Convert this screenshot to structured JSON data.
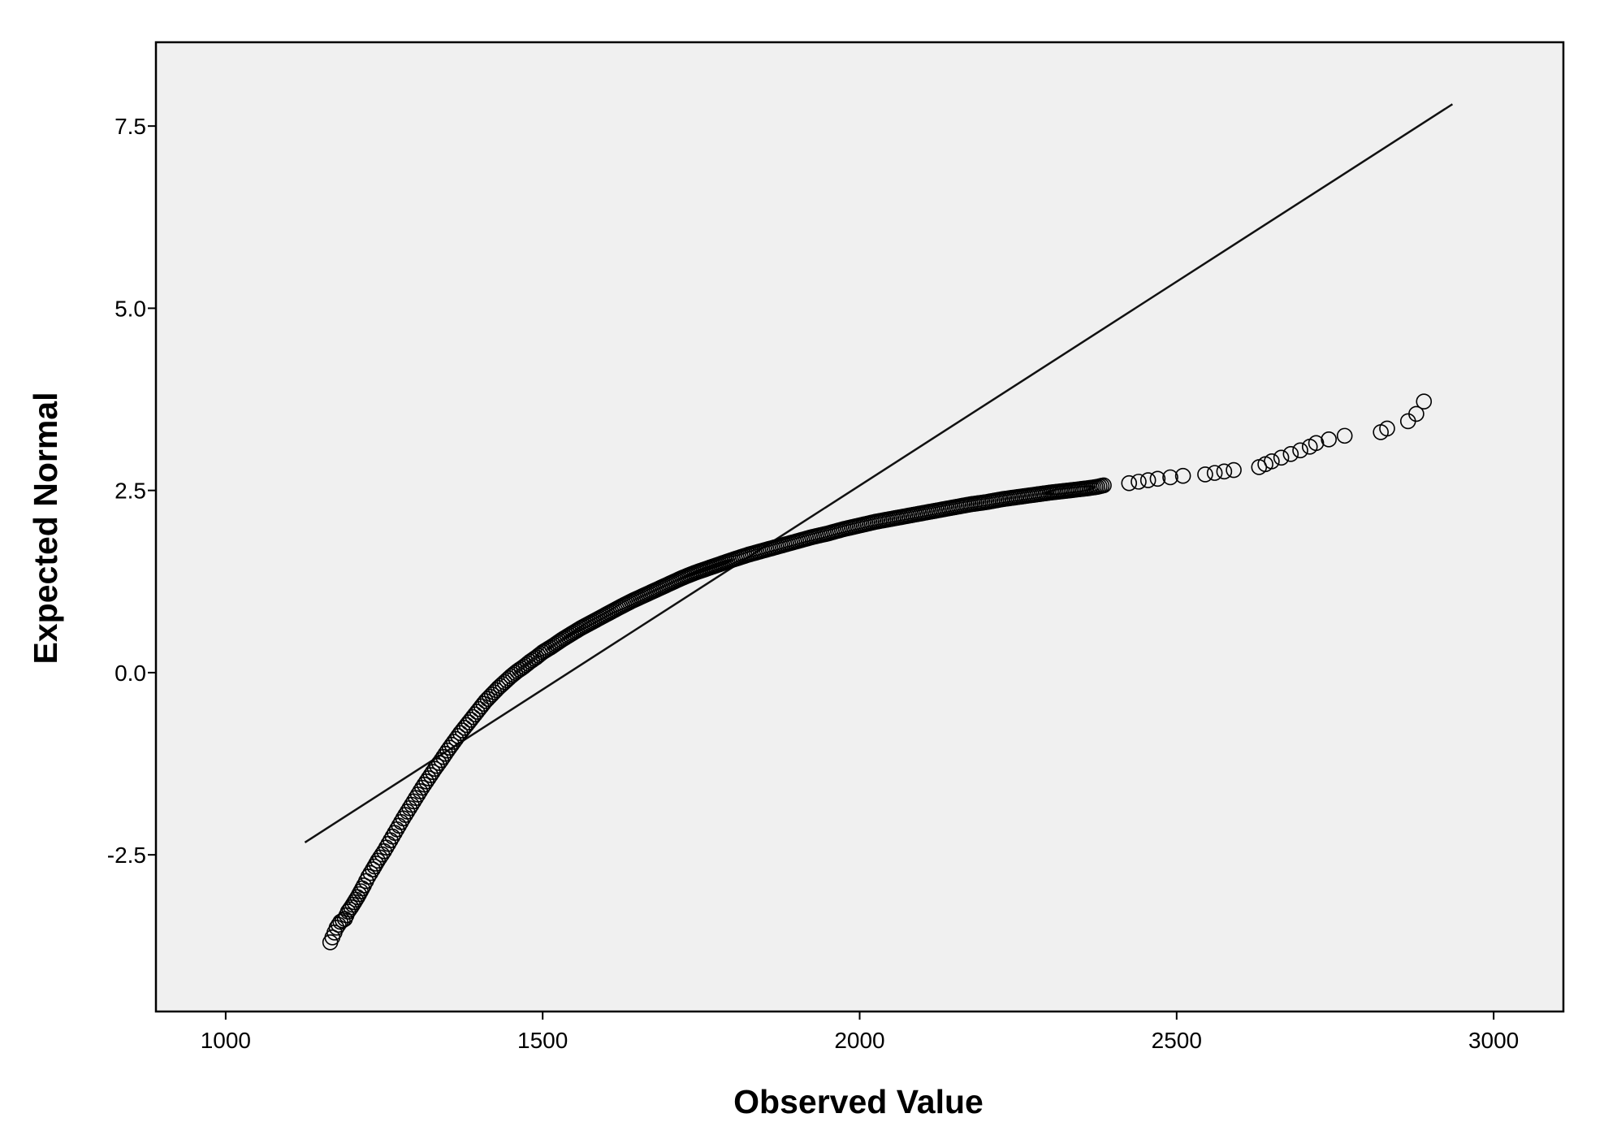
{
  "chart_data": {
    "type": "scatter",
    "title": "",
    "xlabel": "Observed Value",
    "ylabel": "Expected Normal",
    "xlim": [
      890,
      3110
    ],
    "ylim": [
      -4.65,
      8.65
    ],
    "xticks": [
      1000,
      1500,
      2000,
      2500,
      3000
    ],
    "xtick_labels": [
      "1000",
      "1500",
      "2000",
      "2500",
      "3000"
    ],
    "yticks": [
      -2.5,
      0.0,
      2.5,
      5.0,
      7.5
    ],
    "ytick_labels": [
      "-2.5",
      "0.0",
      "2.5",
      "5.0",
      "7.5"
    ],
    "grid": false,
    "legend": "none",
    "plot_background": "#f0f0f0",
    "marker": "open-circle",
    "reference_line": {
      "x": [
        1125,
        2935
      ],
      "y": [
        -2.33,
        7.8
      ]
    },
    "points": {
      "x": [
        1165,
        1175,
        1181,
        1188,
        1193,
        1198,
        1203,
        1208,
        1213,
        1218,
        1225,
        1232,
        1240,
        1250,
        1260,
        1270,
        1280,
        1290,
        1300,
        1310,
        1320,
        1330,
        1340,
        1350,
        1360,
        1370,
        1380,
        1390,
        1400,
        1410,
        1420,
        1430,
        1440,
        1450,
        1460,
        1470,
        1480,
        1490,
        1500,
        1515,
        1530,
        1545,
        1560,
        1575,
        1590,
        1605,
        1620,
        1640,
        1660,
        1680,
        1700,
        1720,
        1740,
        1760,
        1780,
        1800,
        1825,
        1850,
        1875,
        1900,
        1925,
        1950,
        1975,
        2000,
        2025,
        2050,
        2075,
        2100,
        2125,
        2150,
        2175,
        2200,
        2225,
        2250,
        2275,
        2300,
        2320,
        2340,
        2360,
        2375,
        2385,
        2425,
        2440,
        2455,
        2470,
        2490,
        2510,
        2545,
        2560,
        2575,
        2590,
        2630,
        2640,
        2650,
        2665,
        2680,
        2695,
        2710,
        2720,
        2740,
        2765,
        2822,
        2832,
        2865,
        2878,
        2890
      ],
      "y": [
        -3.7,
        -3.5,
        -3.42,
        -3.38,
        -3.28,
        -3.22,
        -3.15,
        -3.08,
        -3.0,
        -2.92,
        -2.8,
        -2.7,
        -2.58,
        -2.45,
        -2.3,
        -2.15,
        -2.0,
        -1.86,
        -1.72,
        -1.58,
        -1.45,
        -1.32,
        -1.2,
        -1.07,
        -0.95,
        -0.83,
        -0.72,
        -0.61,
        -0.5,
        -0.39,
        -0.3,
        -0.21,
        -0.13,
        -0.05,
        0.02,
        0.08,
        0.15,
        0.21,
        0.28,
        0.36,
        0.45,
        0.53,
        0.61,
        0.68,
        0.75,
        0.82,
        0.89,
        0.98,
        1.06,
        1.14,
        1.22,
        1.3,
        1.37,
        1.43,
        1.49,
        1.55,
        1.62,
        1.68,
        1.74,
        1.8,
        1.86,
        1.91,
        1.97,
        2.02,
        2.07,
        2.11,
        2.15,
        2.19,
        2.23,
        2.27,
        2.31,
        2.34,
        2.38,
        2.41,
        2.44,
        2.47,
        2.49,
        2.51,
        2.53,
        2.55,
        2.57,
        2.6,
        2.62,
        2.64,
        2.66,
        2.68,
        2.7,
        2.72,
        2.74,
        2.76,
        2.78,
        2.82,
        2.86,
        2.9,
        2.95,
        3.0,
        3.05,
        3.1,
        3.15,
        3.2,
        3.25,
        3.3,
        3.35,
        3.45,
        3.55,
        3.72
      ]
    }
  }
}
